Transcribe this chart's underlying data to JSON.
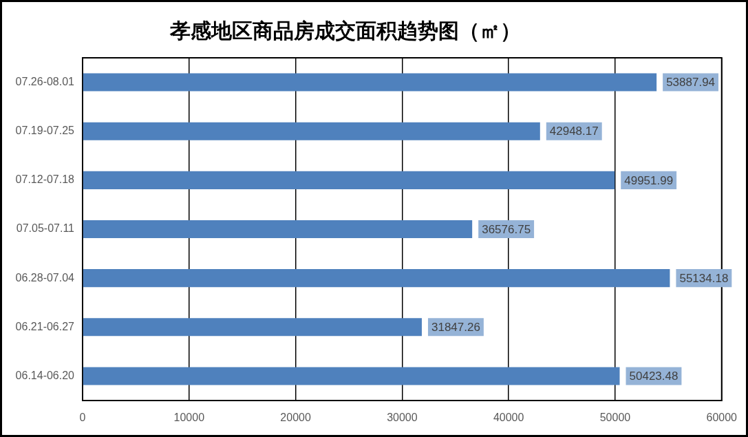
{
  "chart_data": {
    "type": "bar",
    "orientation": "horizontal",
    "title": "孝感地区商品房成交面积趋势图（㎡）",
    "categories": [
      "07.26-08.01",
      "07.19-07.25",
      "07.12-07.18",
      "07.05-07.11",
      "06.28-07.04",
      "06.21-06.27",
      "06.14-06.20"
    ],
    "values": [
      53887.94,
      42948.17,
      49951.99,
      36576.75,
      55134.18,
      31847.26,
      50423.48
    ],
    "color": "#4f81bd",
    "xlim": [
      0,
      60000
    ],
    "xticks": [
      0,
      10000,
      20000,
      30000,
      40000,
      50000,
      60000
    ],
    "grid": "x",
    "data_labels": true
  }
}
